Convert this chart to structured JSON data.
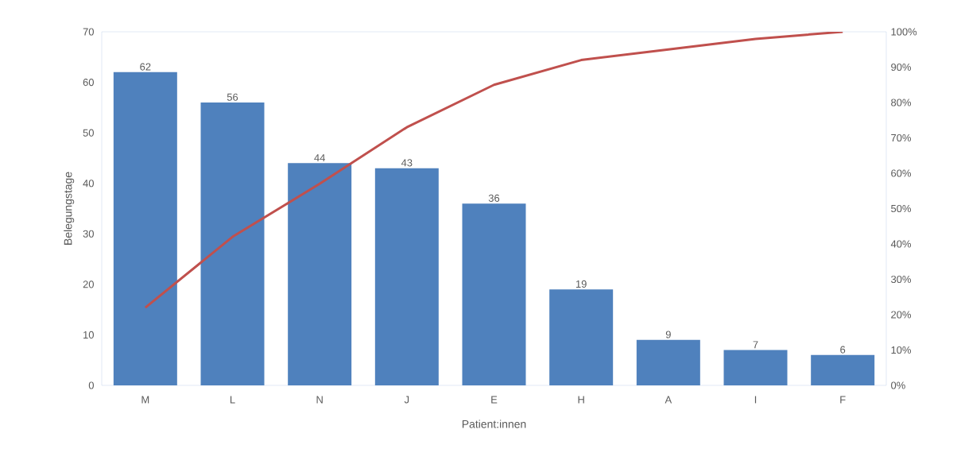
{
  "chart_data": {
    "type": "bar",
    "xlabel": "Patient:innen",
    "ylabel": "Belegungstage",
    "categories": [
      "M",
      "L",
      "N",
      "J",
      "E",
      "H",
      "A",
      "I",
      "F"
    ],
    "series": [
      {
        "color": "#4f81bd",
        "values": [
          62,
          56,
          44,
          43,
          36,
          19,
          9,
          7,
          6
        ],
        "value_labels": [
          "62",
          "56",
          "44",
          "43",
          "36",
          "19",
          "9",
          "7",
          "6"
        ]
      },
      {
        "type": "line",
        "axis": "y2",
        "color": "#c0504d",
        "values": [
          22,
          42,
          57,
          73,
          85,
          92,
          95,
          98,
          100
        ]
      }
    ],
    "ylim": [
      0,
      70
    ],
    "yticks": [
      0,
      10,
      20,
      30,
      40,
      50,
      60,
      70
    ],
    "y2lim": [
      0,
      100
    ],
    "y2ticks": [
      {
        "value": 0,
        "label": "0%"
      },
      {
        "value": 10,
        "label": "10%"
      },
      {
        "value": 20,
        "label": "20%"
      },
      {
        "value": 30,
        "label": "30%"
      },
      {
        "value": 40,
        "label": "40%"
      },
      {
        "value": 50,
        "label": "50%"
      },
      {
        "value": 60,
        "label": "60%"
      },
      {
        "value": 70,
        "label": "70%"
      },
      {
        "value": 80,
        "label": "80%"
      },
      {
        "value": 90,
        "label": "90%"
      },
      {
        "value": 100,
        "label": "100%"
      }
    ]
  }
}
